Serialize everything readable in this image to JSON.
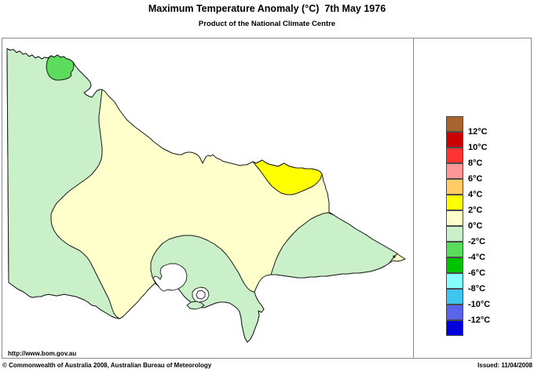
{
  "header": {
    "title": "Maximum Temperature Anomaly (°C)  7th May 1976",
    "subtitle": "Product of the National Climate Centre"
  },
  "legend": {
    "unit": "°C",
    "colors": [
      "#A8642F",
      "#CC0000",
      "#FF3333",
      "#FF9999",
      "#FFCC66",
      "#FFFF00",
      "#FFFFCC",
      "#C9F0C9",
      "#5CDC5C",
      "#00C400",
      "#88FFFF",
      "#3FC6F0",
      "#5A64EB",
      "#0000DD"
    ],
    "boundary_labels": [
      "12°C",
      "10°C",
      "8°C",
      "6°C",
      "4°C",
      "2°C",
      "0°C",
      "-2°C",
      "-4°C",
      "-6°C",
      "-8°C",
      "-10°C",
      "-12°C"
    ]
  },
  "map": {
    "region": "Victoria, Australia",
    "fills": {
      "sea": "#FFFFFF",
      "anomaly_0_to_2": "#FFFFCC",
      "anomaly_neg2_to_0": "#C9F0C9",
      "anomaly_neg4_to_neg2": "#5CDC5C",
      "anomaly_2_to_4": "#FFFF00",
      "water_body": "#FFFFFF",
      "outline": "#1a1a1a"
    },
    "zones": [
      {
        "name": "northwest-pocket",
        "anomaly_range_c": "-4 to -2"
      },
      {
        "name": "western-victoria",
        "anomaly_range_c": "-2 to 0"
      },
      {
        "name": "central-north-and-gippsland",
        "anomaly_range_c": "0 to 2"
      },
      {
        "name": "northeast-pocket",
        "anomaly_range_c": "2 to 4"
      },
      {
        "name": "central-south-melbourne",
        "anomaly_range_c": "-2 to 0"
      },
      {
        "name": "east-gippsland",
        "anomaly_range_c": "-2 to 0"
      },
      {
        "name": "far-east-tip",
        "anomaly_range_c": "0 to 2"
      }
    ]
  },
  "footer": {
    "url": "http://www.bom.gov.au",
    "copyright": "© Commonwealth of Australia 2008, Australian Bureau of Meteorology",
    "issued": "Issued: 11/04/2008"
  }
}
